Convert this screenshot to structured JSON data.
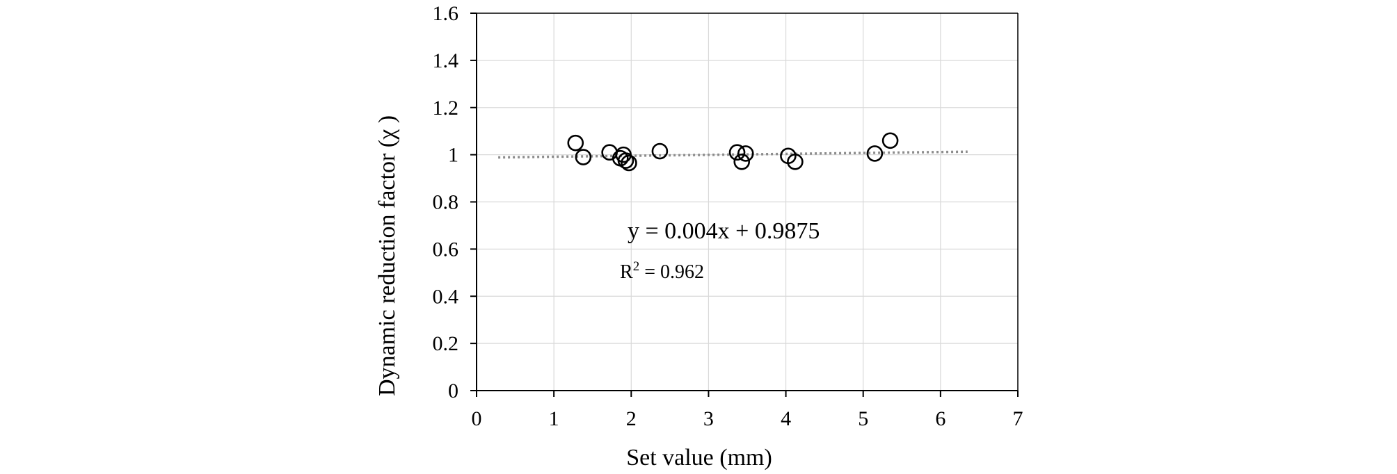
{
  "chart_data": {
    "type": "scatter",
    "xlabel": "Set value (mm)",
    "ylabel": "Dynamic reduction factor (χ )",
    "xlim": [
      0,
      7
    ],
    "ylim": [
      0,
      1.6
    ],
    "x_ticks": [
      "0",
      "1",
      "2",
      "3",
      "4",
      "5",
      "6",
      "7"
    ],
    "y_ticks": [
      "0",
      "0.2",
      "0.4",
      "0.6",
      "0.8",
      "1",
      "1.2",
      "1.4",
      "1.6"
    ],
    "grid": true,
    "points": [
      {
        "x": 1.28,
        "y": 1.05
      },
      {
        "x": 1.38,
        "y": 0.99
      },
      {
        "x": 1.72,
        "y": 1.01
      },
      {
        "x": 1.86,
        "y": 0.985
      },
      {
        "x": 1.9,
        "y": 1.0
      },
      {
        "x": 1.93,
        "y": 0.975
      },
      {
        "x": 1.97,
        "y": 0.965
      },
      {
        "x": 2.37,
        "y": 1.015
      },
      {
        "x": 3.37,
        "y": 1.01
      },
      {
        "x": 3.43,
        "y": 0.97
      },
      {
        "x": 3.48,
        "y": 1.005
      },
      {
        "x": 4.03,
        "y": 0.995
      },
      {
        "x": 4.12,
        "y": 0.97
      },
      {
        "x": 5.15,
        "y": 1.005
      },
      {
        "x": 5.35,
        "y": 1.06
      }
    ],
    "trendline": {
      "type": "linear",
      "slope": 0.004,
      "intercept": 0.9875,
      "x_range": [
        0.28,
        6.35
      ],
      "style": "dotted",
      "color": "#8c8c8c"
    },
    "equation_label": "y = 0.004x + 0.9875",
    "r2_prefix": "R",
    "r2_superscript": "2",
    "r2_value": " = 0.962",
    "colors": {
      "marker_stroke": "#000000",
      "grid": "#d9d9d9",
      "axis": "#000000"
    }
  }
}
